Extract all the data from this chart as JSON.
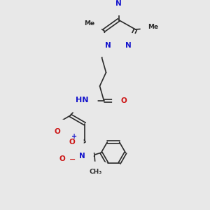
{
  "bg_color": "#e8e8e8",
  "bond_color": "#2a2a2a",
  "bond_width": 1.2,
  "atom_colors": {
    "N": "#1414cc",
    "O": "#cc1414",
    "H": "#3a8888",
    "C": "#2a2a2a"
  },
  "fs": 7.5,
  "fss": 6.5,
  "xlim": [
    0,
    10
  ],
  "ylim": [
    0,
    10
  ]
}
